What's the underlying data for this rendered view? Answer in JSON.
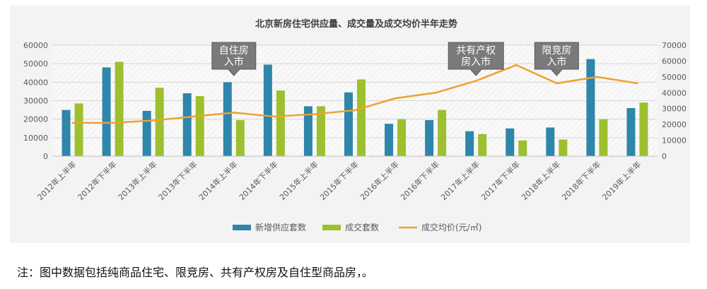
{
  "chart_data": {
    "type": "bar",
    "title": "北京新房住宅供应量、成交量及成交均价半年走势",
    "categories": [
      "2012年上半年",
      "2012年下半年",
      "2013年上半年",
      "2013年下半年",
      "2014年上半年",
      "2014年下半年",
      "2015年上半年",
      "2015年下半年",
      "2016年上半年",
      "2016年下半年",
      "2017年上半年",
      "2017年下半年",
      "2018年上半年",
      "2018年下半年",
      "2019年上半年"
    ],
    "series": [
      {
        "name": "新增供应套数",
        "kind": "bar",
        "axis": "left",
        "color": "#2e86ab",
        "values": [
          25000,
          48000,
          24500,
          34000,
          40000,
          49500,
          27000,
          34500,
          17500,
          19500,
          13500,
          15000,
          15500,
          52500,
          26000
        ]
      },
      {
        "name": "成交套数",
        "kind": "bar",
        "axis": "left",
        "color": "#9dc02f",
        "values": [
          28500,
          51000,
          37000,
          32500,
          19500,
          35500,
          27000,
          41500,
          20000,
          25000,
          12000,
          8500,
          9000,
          20000,
          29000
        ]
      },
      {
        "name": "成交均价(元/㎡)",
        "kind": "line",
        "axis": "right",
        "color": "#f0a030",
        "values": [
          21000,
          21000,
          22500,
          25000,
          27500,
          25000,
          26500,
          29000,
          36500,
          40000,
          47500,
          57500,
          46000,
          50000,
          46000
        ]
      }
    ],
    "y_left": {
      "min": 0,
      "max": 60000,
      "ticks": [
        "0",
        "10000",
        "20000",
        "30000",
        "40000",
        "50000",
        "60000"
      ]
    },
    "y_right": {
      "min": 0,
      "max": 70000,
      "ticks": [
        "0",
        "10000",
        "20000",
        "30000",
        "40000",
        "50000",
        "60000",
        "70000"
      ]
    },
    "grid": true,
    "legend_position": "bottom",
    "annotations": [
      {
        "lines": [
          "自住房",
          "入市"
        ],
        "category_index": 4
      },
      {
        "lines": [
          "共有产权",
          "房入市"
        ],
        "category_index": 10
      },
      {
        "lines": [
          "限竞房",
          "入市"
        ],
        "category_index": 12
      }
    ]
  },
  "footnote": "注：图中数据包括纯商品住宅、限竞房、共有产权房及自住型商品房，。",
  "colors": {
    "panel_bg": "#f3f3f3",
    "plot_bg": "#f9f9f9",
    "gridline": "#d6d6d6",
    "axis_text": "#595959",
    "callout_bg": "#7a7a7a"
  }
}
